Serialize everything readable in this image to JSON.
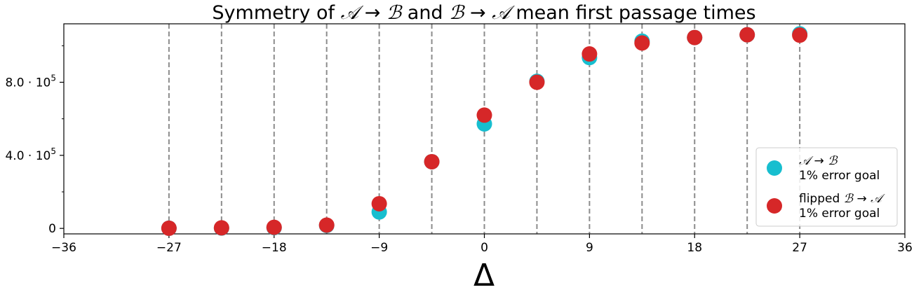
{
  "chart_data": {
    "type": "scatter",
    "title_parts": [
      "Symmetry of ",
      "𝒜",
      " → ",
      "ℬ",
      " and ",
      "ℬ",
      " → ",
      "𝒜",
      " mean first passage times"
    ],
    "xlabel": "Δ",
    "ylabel": "",
    "xlim": [
      -36,
      36
    ],
    "ylim": [
      -30000,
      1120000
    ],
    "xticks": [
      -36,
      -27,
      -18,
      -9,
      0,
      9,
      18,
      27,
      36
    ],
    "xtick_labels": [
      "−36",
      "−27",
      "−18",
      "−9",
      "0",
      "9",
      "18",
      "27",
      "36"
    ],
    "yticks_major": [
      0,
      400000,
      800000
    ],
    "ytick_labels": [
      {
        "mantissa": "0",
        "exp": ""
      },
      {
        "mantissa": "4.0 · 10",
        "exp": "5"
      },
      {
        "mantissa": "8.0 · 10",
        "exp": "5"
      }
    ],
    "yticks_minor": [
      200000,
      600000,
      1000000
    ],
    "vlines_x": [
      -27,
      -22.5,
      -18,
      -13.5,
      -9,
      -4.5,
      0,
      4.5,
      9,
      13.5,
      18,
      22.5,
      27
    ],
    "grid": false,
    "legend_position": "lower-right",
    "series": [
      {
        "name_parts": [
          "𝒜",
          " → ",
          "ℬ"
        ],
        "name_line2": "1% error goal",
        "color": "#17becf",
        "x": [
          -27,
          -22.5,
          -18,
          -13.5,
          -9,
          -4.5,
          0,
          4.5,
          9,
          13.5,
          18,
          22.5,
          27
        ],
        "y": [
          1000,
          2000,
          4000,
          16000,
          90000,
          365000,
          572000,
          805000,
          935000,
          1025000,
          1045000,
          1060000,
          1065000
        ]
      },
      {
        "name_parts": [
          "flipped ",
          "ℬ",
          " → ",
          "𝒜"
        ],
        "name_line2": "1% error goal",
        "color": "#d62728",
        "x": [
          -27,
          -22.5,
          -18,
          -13.5,
          -9,
          -4.5,
          0,
          4.5,
          9,
          13.5,
          18,
          22.5,
          27
        ],
        "y": [
          1000,
          3000,
          6000,
          18000,
          135000,
          365000,
          620000,
          800000,
          955000,
          1015000,
          1045000,
          1060000,
          1058000
        ]
      }
    ]
  }
}
